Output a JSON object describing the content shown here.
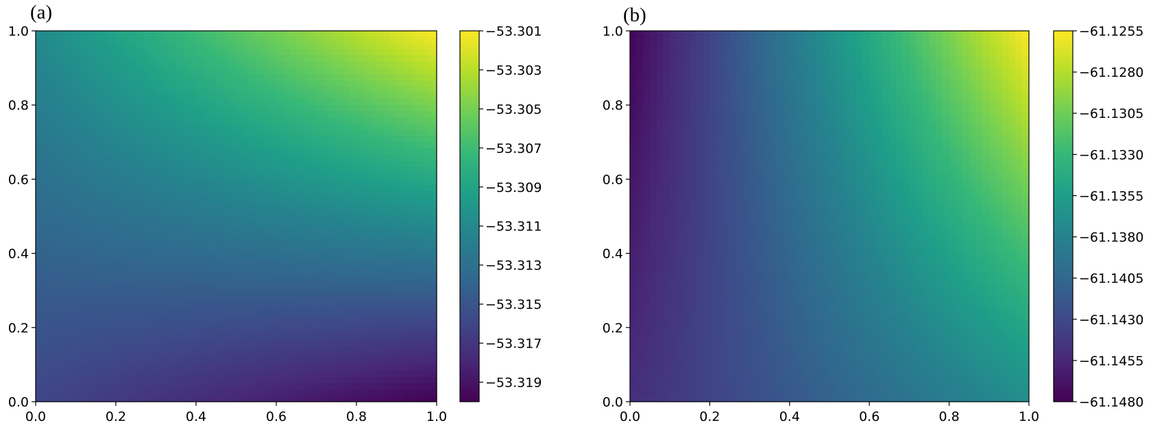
{
  "chart_data": [
    {
      "type": "heatmap",
      "panel_label": "(a)",
      "xlim": [
        0.0,
        1.0
      ],
      "ylim": [
        0.0,
        1.0
      ],
      "x_ticks": [
        "0.0",
        "0.2",
        "0.4",
        "0.6",
        "0.8",
        "1.0"
      ],
      "y_ticks": [
        "0.0",
        "0.2",
        "0.4",
        "0.6",
        "0.8",
        "1.0"
      ],
      "colormap": "viridis",
      "colorbar": {
        "range": [
          -53.32,
          -53.301
        ],
        "ticks": [
          -53.301,
          -53.303,
          -53.305,
          -53.307,
          -53.309,
          -53.311,
          -53.313,
          -53.315,
          -53.317,
          -53.319
        ],
        "tick_labels": [
          "−53.301",
          "−53.303",
          "−53.305",
          "−53.307",
          "−53.309",
          "−53.311",
          "−53.313",
          "−53.315",
          "−53.317",
          "−53.319"
        ]
      },
      "corner_values": {
        "x0_y0": -53.316,
        "x1_y0": -53.32,
        "x0_y1": -53.311,
        "x1_y1": -53.301
      },
      "max_location": [
        1.0,
        1.0
      ],
      "min_location": [
        1.0,
        0.0
      ]
    },
    {
      "type": "heatmap",
      "panel_label": "(b)",
      "xlim": [
        0.0,
        1.0
      ],
      "ylim": [
        0.0,
        1.0
      ],
      "x_ticks": [
        "0.0",
        "0.2",
        "0.4",
        "0.6",
        "0.8",
        "1.0"
      ],
      "y_ticks": [
        "0.0",
        "0.2",
        "0.4",
        "0.6",
        "0.8",
        "1.0"
      ],
      "colormap": "viridis",
      "colorbar": {
        "range": [
          -61.148,
          -61.1255
        ],
        "ticks": [
          -61.1255,
          -61.128,
          -61.1305,
          -61.133,
          -61.1355,
          -61.138,
          -61.1405,
          -61.143,
          -61.1455,
          -61.148
        ],
        "tick_labels": [
          "−61.1255",
          "−61.1280",
          "−61.1305",
          "−61.1330",
          "−61.1355",
          "−61.1380",
          "−61.1405",
          "−61.1430",
          "−61.1455",
          "−61.1480"
        ]
      },
      "corner_values": {
        "x0_y0": -61.145,
        "x1_y0": -61.137,
        "x0_y1": -61.1478,
        "x1_y1": -61.1255
      },
      "max_location": [
        1.0,
        1.0
      ],
      "min_location": [
        0.0,
        1.0
      ]
    }
  ]
}
